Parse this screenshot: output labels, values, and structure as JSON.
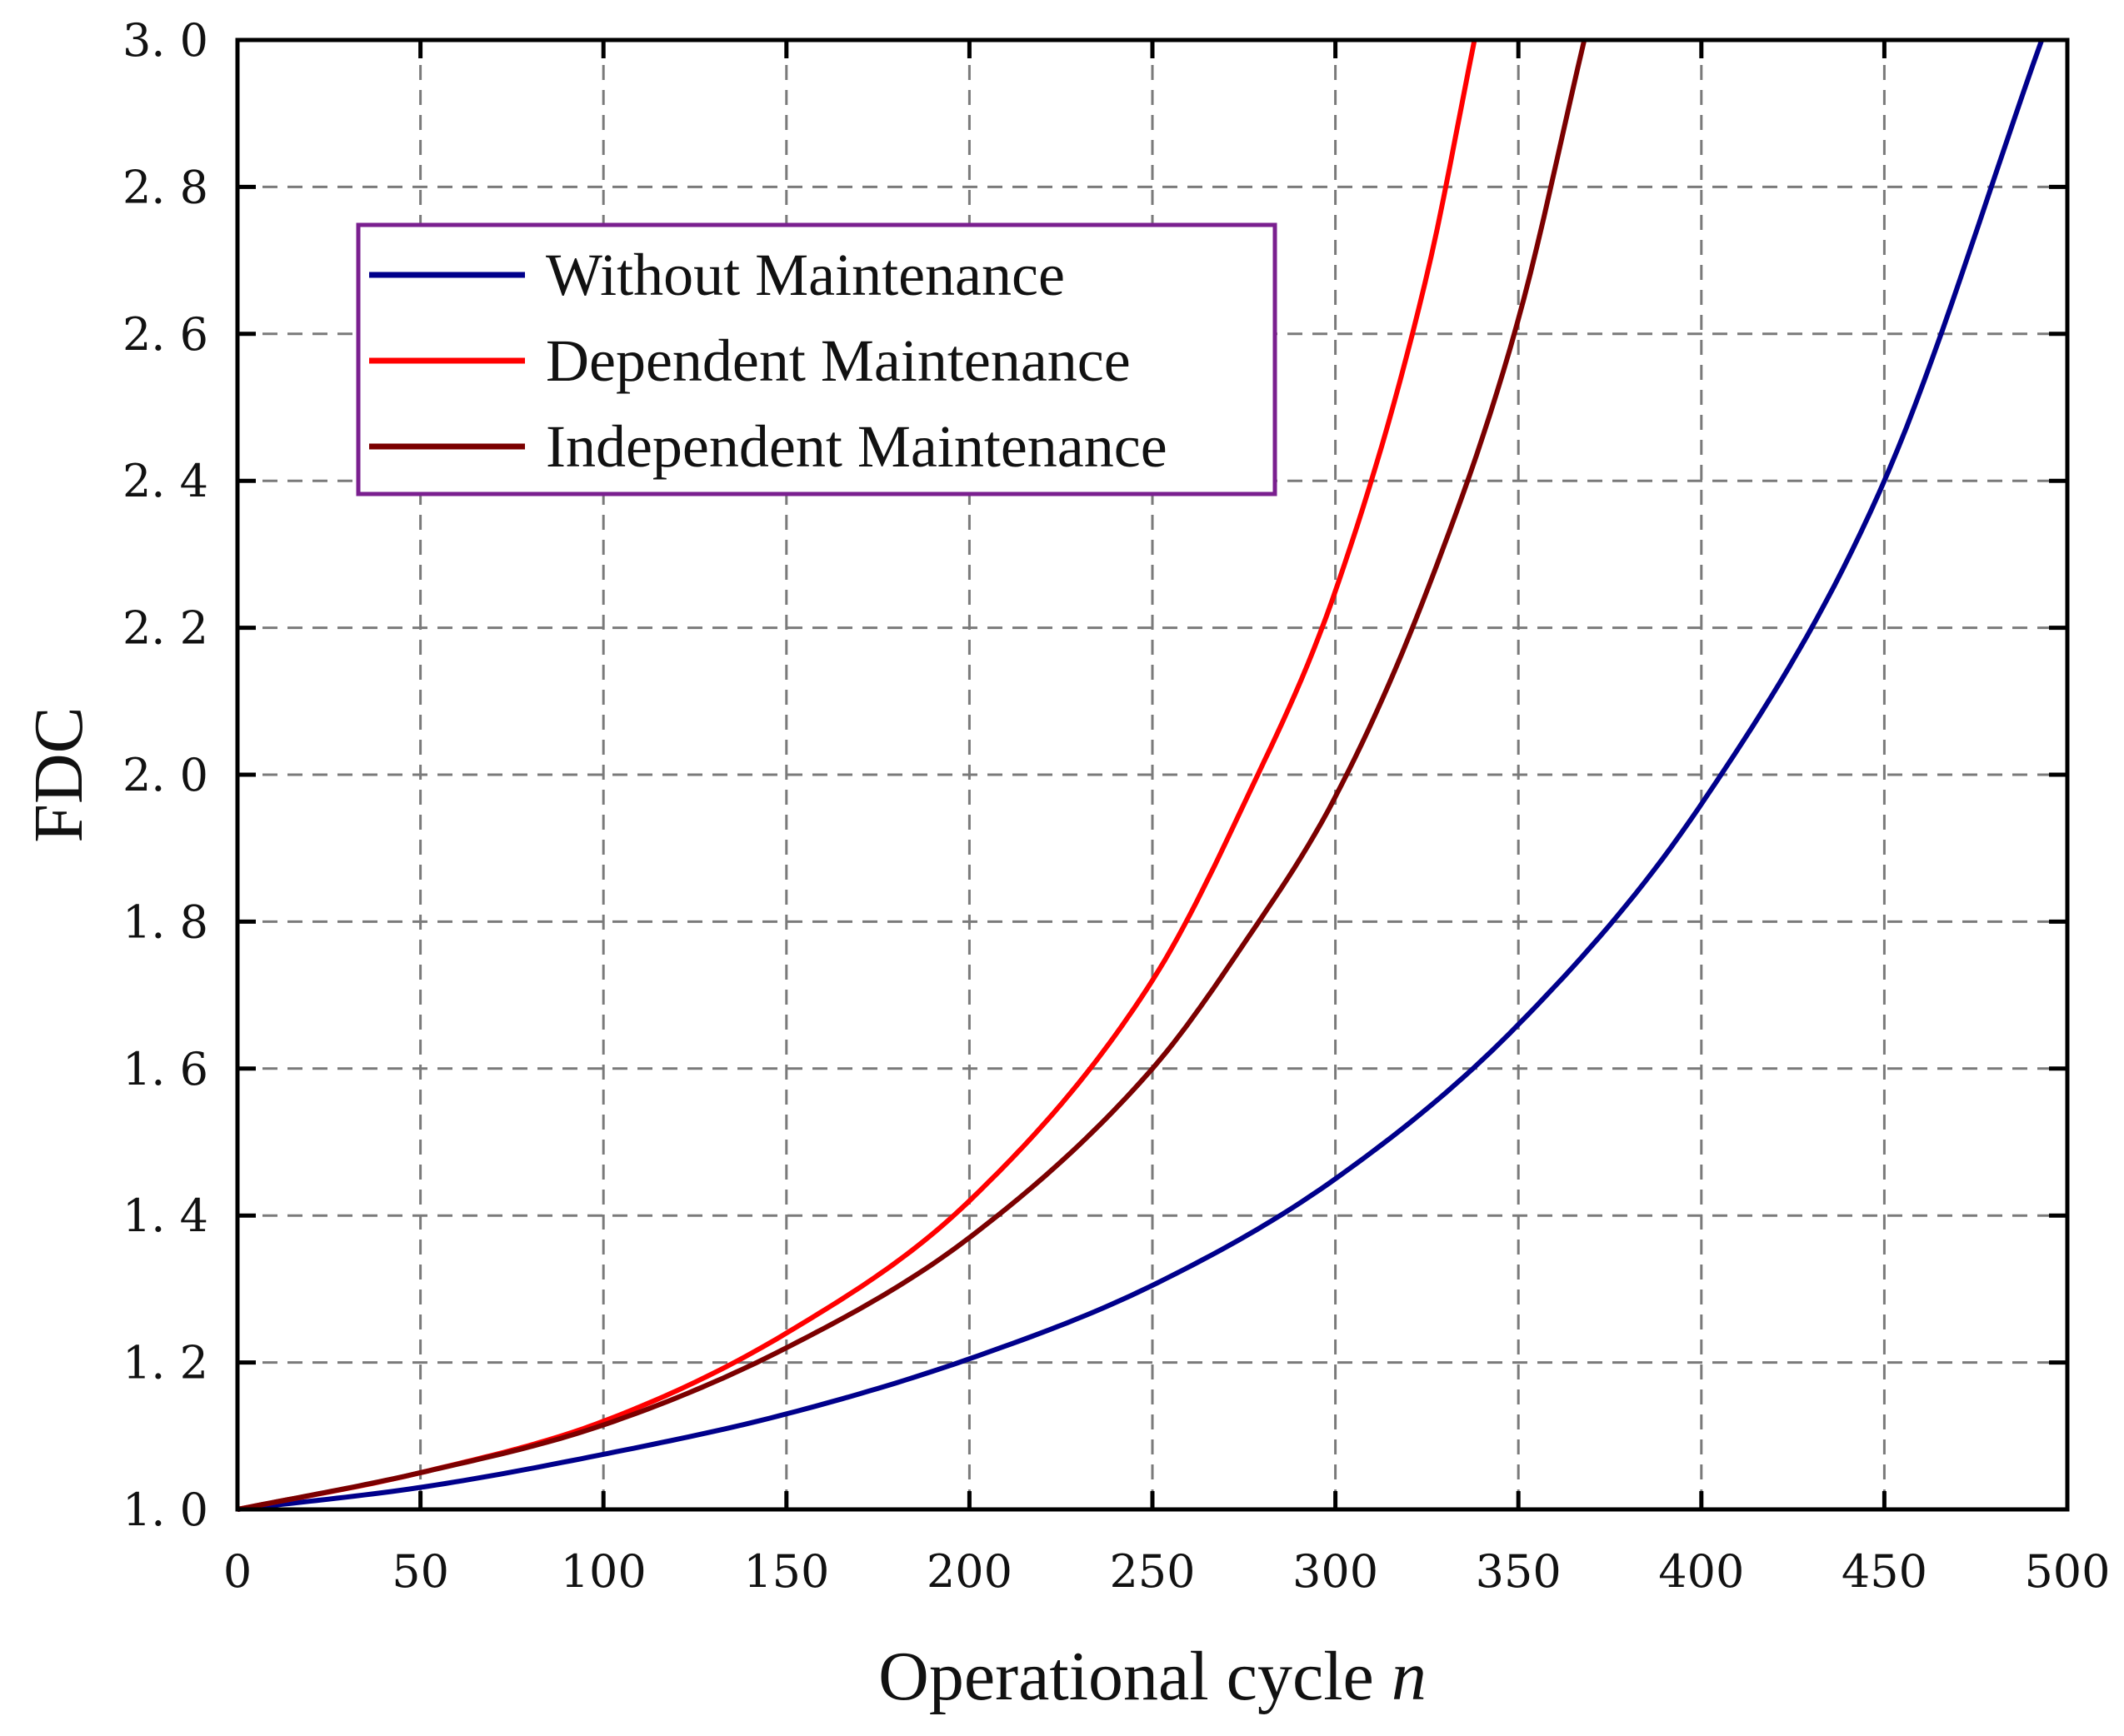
{
  "chart_data": {
    "type": "line",
    "xlabel": "Operational cycle",
    "xlabel_var": "n",
    "ylabel": "FDC",
    "xlim": [
      0,
      500
    ],
    "ylim": [
      1.0,
      3.0
    ],
    "grid": true,
    "legend_position": "top-left",
    "xticks": [
      0,
      50,
      100,
      150,
      200,
      250,
      300,
      350,
      400,
      450,
      500
    ],
    "xtick_labels": [
      "0",
      "50",
      "100",
      "150",
      "200",
      "250",
      "300",
      "350",
      "400",
      "450",
      "500"
    ],
    "yticks": [
      1.0,
      1.2,
      1.4,
      1.6,
      1.8,
      2.0,
      2.2,
      2.4,
      2.6,
      2.8,
      3.0
    ],
    "ytick_labels": [
      "1. 0",
      "1. 2",
      "1. 4",
      "1. 6",
      "1. 8",
      "2. 0",
      "2. 2",
      "2. 4",
      "2. 6",
      "2. 8",
      "3. 0"
    ],
    "series": [
      {
        "name": "Without Maintenance",
        "color": "#00008b",
        "x": [
          0,
          50,
          100,
          150,
          200,
          250,
          300,
          350,
          400,
          450,
          493
        ],
        "values": [
          1.0,
          1.03,
          1.075,
          1.13,
          1.205,
          1.305,
          1.45,
          1.66,
          1.96,
          2.4,
          3.0
        ]
      },
      {
        "name": "Dependent Maintenance",
        "color": "#ff0000",
        "x": [
          0,
          50,
          100,
          150,
          200,
          250,
          275,
          300,
          325,
          338
        ],
        "values": [
          1.0,
          1.05,
          1.12,
          1.24,
          1.42,
          1.72,
          1.96,
          2.25,
          2.68,
          3.0
        ]
      },
      {
        "name": "Independent Maintenance",
        "color": "#7b0000",
        "x": [
          0,
          50,
          100,
          150,
          200,
          250,
          275,
          300,
          325,
          350,
          368
        ],
        "values": [
          1.0,
          1.05,
          1.115,
          1.22,
          1.37,
          1.6,
          1.77,
          1.97,
          2.25,
          2.62,
          3.0
        ]
      }
    ]
  }
}
